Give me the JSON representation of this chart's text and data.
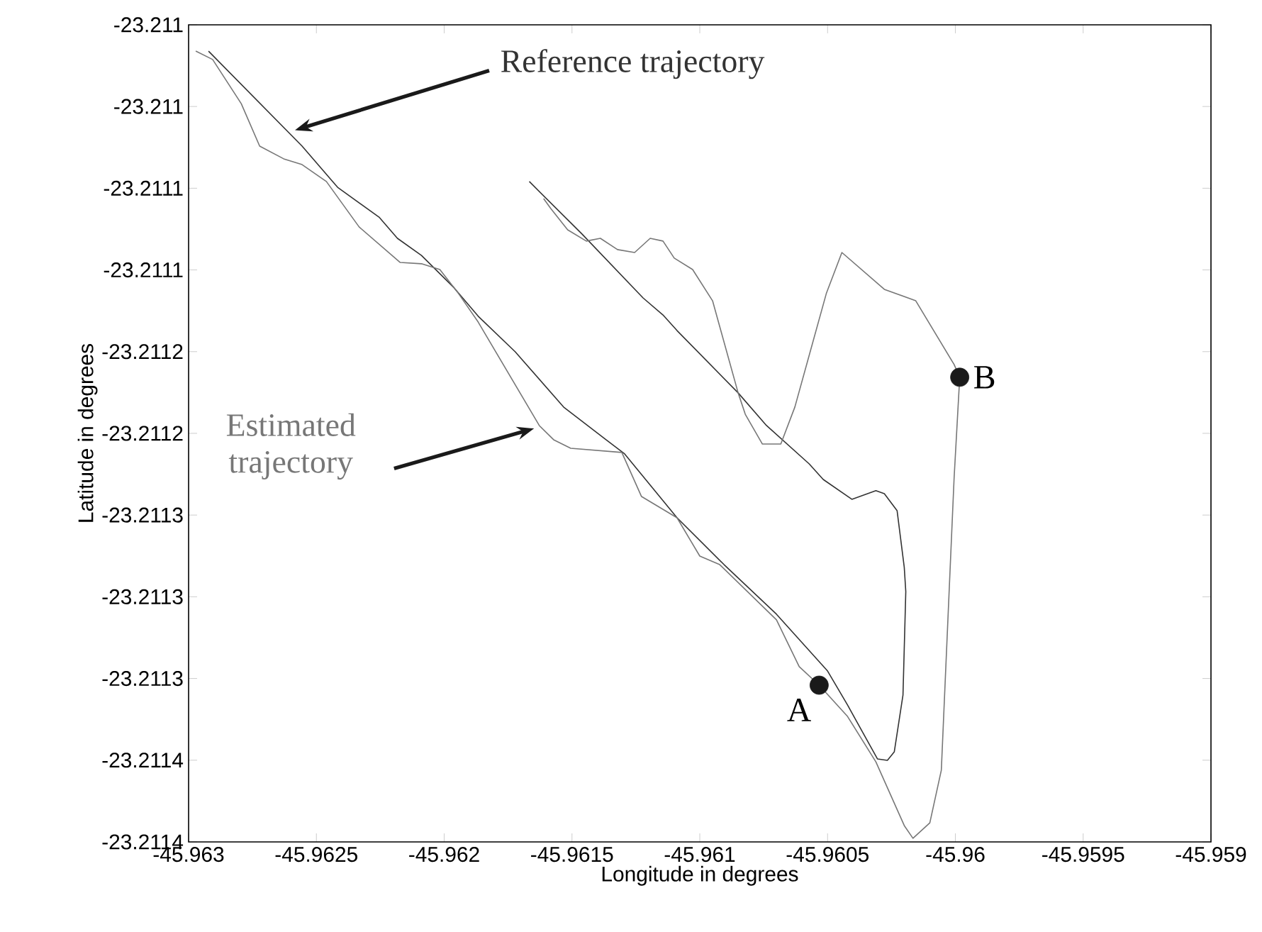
{
  "chart_data": {
    "type": "line",
    "xlabel": "Longitude in degrees",
    "ylabel": "Latitude in degrees",
    "xlim": [
      -45.963,
      -45.959
    ],
    "xticks": [
      -45.963,
      -45.9625,
      -45.962,
      -45.9615,
      -45.961,
      -45.9605,
      -45.96,
      -45.9595,
      -45.959
    ],
    "ylim": [
      -23.21143,
      -23.21098
    ],
    "yticks": [
      {
        "value": -23.21098,
        "label": "-23.211"
      },
      {
        "value": -23.211025,
        "label": "-23.211"
      },
      {
        "value": -23.21107,
        "label": "-23.2111"
      },
      {
        "value": -23.211115,
        "label": "-23.2111"
      },
      {
        "value": -23.21116,
        "label": "-23.2112"
      },
      {
        "value": -23.211205,
        "label": "-23.2112"
      },
      {
        "value": -23.21125,
        "label": "-23.2113"
      },
      {
        "value": -23.211295,
        "label": "-23.2113"
      },
      {
        "value": -23.21134,
        "label": "-23.2113"
      },
      {
        "value": -23.211385,
        "label": "-23.2114"
      },
      {
        "value": -23.21143,
        "label": "-23.2114"
      }
    ],
    "series": [
      {
        "name": "Reference trajectory",
        "color": "#333333",
        "x": [
          -45.962922,
          -45.962556,
          -45.962417,
          -45.962255,
          -45.962183,
          -45.962089,
          -45.961961,
          -45.961867,
          -45.961722,
          -45.961533,
          -45.961367,
          -45.961294,
          -45.961089,
          -45.960905,
          -45.9607,
          -45.9605,
          -45.960422,
          -45.960305,
          -45.960266,
          -45.960239,
          -45.960205,
          -45.960194,
          -45.9602,
          -45.960228,
          -45.960278,
          -45.960311,
          -45.960405,
          -45.960517,
          -45.960572,
          -45.960739,
          -45.96085,
          -45.961089,
          -45.961144,
          -45.961222,
          -45.961461,
          -45.961667
        ],
        "values": [
          -23.2109945,
          -23.2110468,
          -23.2110695,
          -23.2110859,
          -23.2110976,
          -23.211107,
          -23.2111249,
          -23.2111405,
          -23.2111601,
          -23.2111905,
          -23.2112085,
          -23.2112163,
          -23.2112515,
          -23.2112773,
          -23.2113046,
          -23.2113359,
          -23.2113546,
          -23.2113843,
          -23.2113851,
          -23.2113804,
          -23.2113491,
          -23.2112921,
          -23.2112788,
          -23.2112476,
          -23.2112382,
          -23.2112366,
          -23.2112413,
          -23.2112304,
          -23.2112218,
          -23.2112007,
          -23.2111827,
          -23.2111484,
          -23.2111398,
          -23.2111304,
          -23.2110952,
          -23.2110663
        ]
      },
      {
        "name": "Estimated trajectory",
        "color": "#777777",
        "x": [
          -45.962972,
          -45.962906,
          -45.962794,
          -45.962722,
          -45.962628,
          -45.962556,
          -45.962461,
          -45.962333,
          -45.962172,
          -45.962089,
          -45.962017,
          -45.961944,
          -45.961867,
          -45.961628,
          -45.961572,
          -45.961505,
          -45.961305,
          -45.961228,
          -45.961089,
          -45.961,
          -45.960922,
          -45.9607,
          -45.960611,
          -45.960533,
          -45.960422,
          -45.960311,
          -45.9602,
          -45.960166,
          -45.9601,
          -45.960055,
          -45.960005,
          -45.959983,
          -45.960005,
          -45.960155,
          -45.960278,
          -45.960444,
          -45.960505,
          -45.960628,
          -45.960683,
          -45.960755,
          -45.960822,
          -45.96085,
          -45.96095,
          -45.961028,
          -45.9611,
          -45.961144,
          -45.961194,
          -45.961255,
          -45.961322,
          -45.961389,
          -45.961444,
          -45.961517,
          -45.961583,
          -45.961611
        ],
        "values": [
          -23.2109945,
          -23.2109991,
          -23.2110234,
          -23.2110468,
          -23.2110538,
          -23.211057,
          -23.2110663,
          -23.2110913,
          -23.2111109,
          -23.2111116,
          -23.2111148,
          -23.211128,
          -23.2111437,
          -23.2112007,
          -23.2112085,
          -23.2112132,
          -23.2112155,
          -23.2112398,
          -23.2112515,
          -23.2112726,
          -23.2112773,
          -23.2113077,
          -23.2113335,
          -23.2113437,
          -23.2113609,
          -23.2113859,
          -23.211421,
          -23.211428,
          -23.2114195,
          -23.2113905,
          -23.2112296,
          -23.2111741,
          -23.2111671,
          -23.211132,
          -23.2111257,
          -23.2111054,
          -23.211128,
          -23.2111905,
          -23.2112109,
          -23.2112109,
          -23.2111945,
          -23.2111827,
          -23.211132,
          -23.2111148,
          -23.2111085,
          -23.2110991,
          -23.2110976,
          -23.2111054,
          -23.2111038,
          -23.2110976,
          -23.2110991,
          -23.2110929,
          -23.2110812,
          -23.2110757
        ]
      },
      {
        "type": "scatter",
        "color": "#1a1a1a",
        "marker": "circle",
        "x": [
          -45.960533,
          -45.959983
        ],
        "values": [
          -23.2113437,
          -23.2111741
        ]
      }
    ],
    "annotations": [
      {
        "text": "A",
        "x": -45.960533,
        "y": -23.2113437
      },
      {
        "text": "B",
        "x": -45.959983,
        "y": -23.2111741
      }
    ]
  }
}
